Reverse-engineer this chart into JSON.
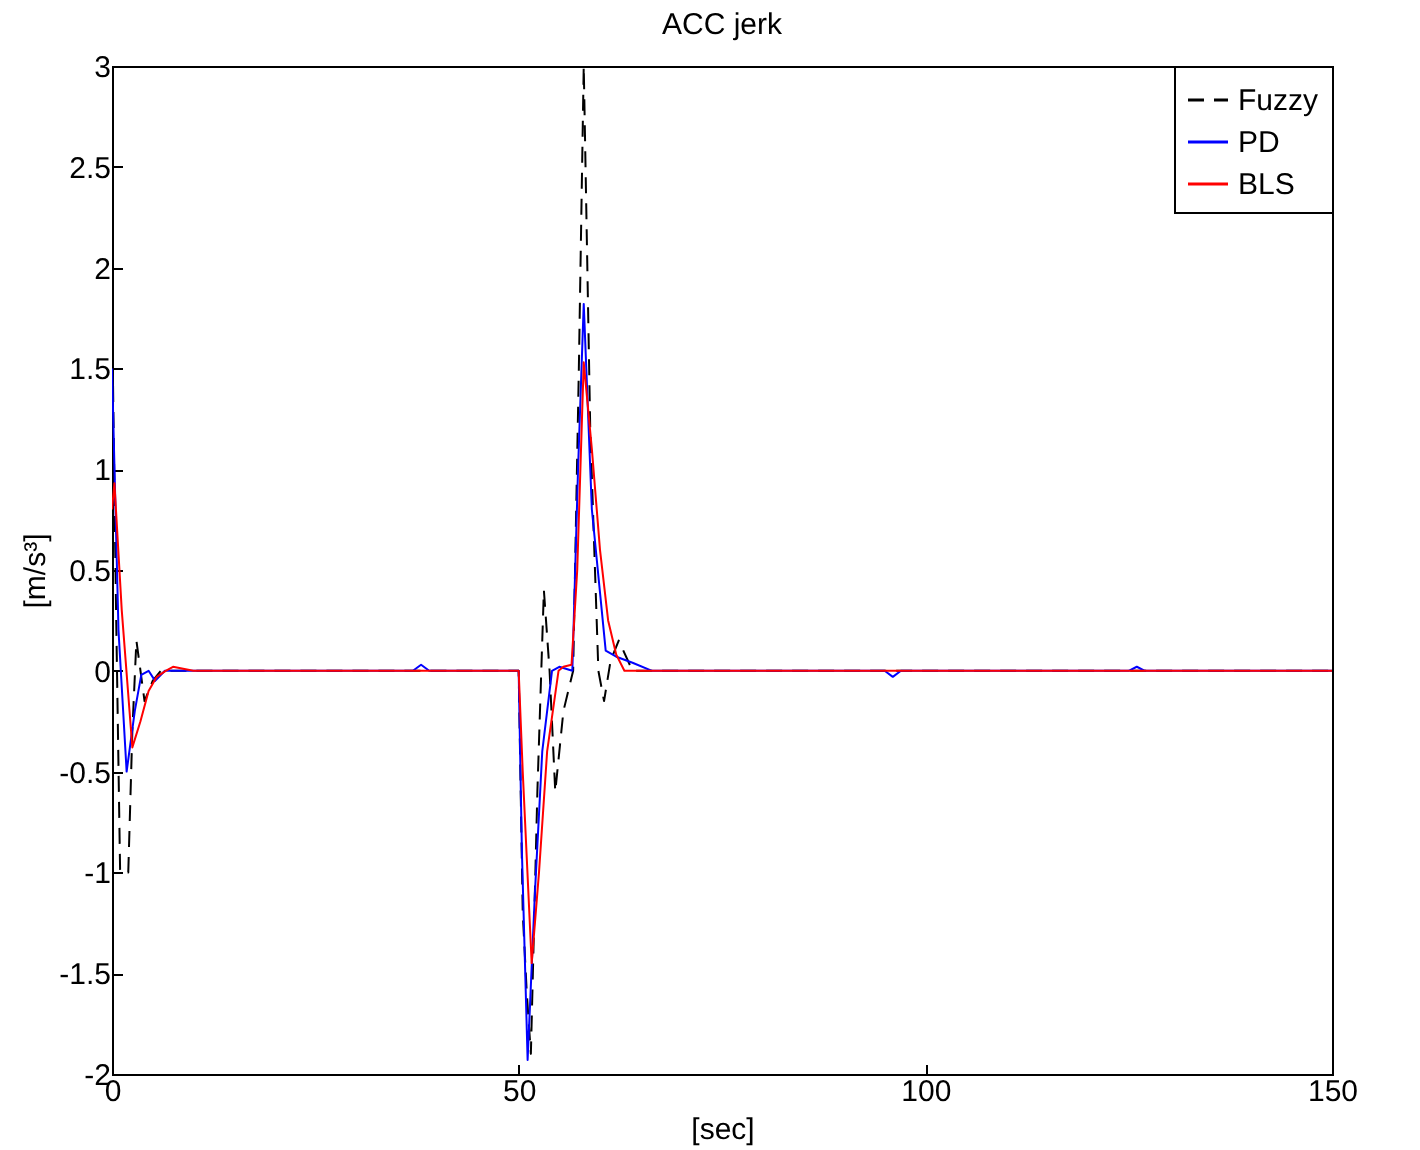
{
  "chart_data": {
    "type": "line",
    "title": "ACC jerk",
    "xlabel": "[sec]",
    "ylabel": "[m/s³]",
    "xlim": [
      0,
      150
    ],
    "ylim": [
      -2,
      3
    ],
    "xticks": [
      0,
      50,
      100,
      150
    ],
    "yticks": [
      -2,
      -1.5,
      -1,
      -0.5,
      0,
      0.5,
      1,
      1.5,
      2,
      2.5,
      3
    ],
    "grid": false,
    "legend": "top right",
    "marker": "none",
    "series": [
      {
        "name": "Fuzzy",
        "color": "#000000",
        "line_style": "dashed",
        "x": [
          0,
          0.5,
          1,
          2,
          2.5,
          3,
          4,
          5,
          6,
          10,
          30,
          50,
          50.5,
          51,
          51.5,
          52.3,
          53.1,
          53.8,
          54.5,
          55.5,
          56.7,
          57.4,
          58,
          58.8,
          59.8,
          60.5,
          61.3,
          62.3,
          64,
          70,
          100,
          150
        ],
        "values": [
          1.8,
          0.3,
          -1,
          -1,
          -0.3,
          0.15,
          -0.15,
          -0.05,
          0,
          0,
          0,
          0,
          -1.2,
          -1.6,
          -1.9,
          -0.6,
          0.4,
          0,
          -0.6,
          -0.2,
          0,
          1.5,
          3,
          1.2,
          0,
          -0.15,
          0.05,
          0.15,
          0,
          0,
          0,
          0
        ]
      },
      {
        "name": "PD",
        "color": "#0000ff",
        "x": [
          0,
          0.8,
          1.8,
          2.8,
          3.6,
          4.5,
          5.3,
          6.5,
          8,
          20,
          37,
          38,
          39,
          50,
          50.4,
          51.1,
          52,
          52.9,
          54.1,
          55,
          56.6,
          57.3,
          58,
          59,
          60.7,
          62,
          64,
          66.4,
          80,
          95,
          96,
          97,
          120,
          125,
          126,
          127,
          150
        ],
        "values": [
          1.5,
          0.2,
          -0.5,
          -0.2,
          -0.02,
          0,
          -0.05,
          0,
          0,
          0,
          0,
          0.03,
          0,
          0,
          -0.9,
          -1.93,
          -1.1,
          -0.4,
          0,
          0.02,
          0,
          1,
          1.82,
          0.8,
          0.1,
          0.07,
          0.04,
          0,
          0,
          0,
          -0.03,
          0,
          0,
          0,
          0.02,
          0,
          0
        ]
      },
      {
        "name": "BLS",
        "color": "#ff0000",
        "x": [
          0,
          0.3,
          1.2,
          2.5,
          3.5,
          4.5,
          5.5,
          6.6,
          7.5,
          10,
          50,
          50.5,
          51.6,
          52.5,
          53.5,
          54.9,
          55.5,
          56.5,
          57.2,
          58,
          59,
          60,
          61,
          62,
          63,
          65,
          80,
          150
        ],
        "values": [
          0.8,
          0.93,
          0.3,
          -0.38,
          -0.25,
          -0.1,
          -0.03,
          0,
          0.02,
          0,
          0,
          -0.5,
          -1.45,
          -1,
          -0.4,
          0,
          0.02,
          0.03,
          0.5,
          1.53,
          1.1,
          0.6,
          0.25,
          0.08,
          0,
          0,
          0,
          0
        ]
      }
    ]
  }
}
